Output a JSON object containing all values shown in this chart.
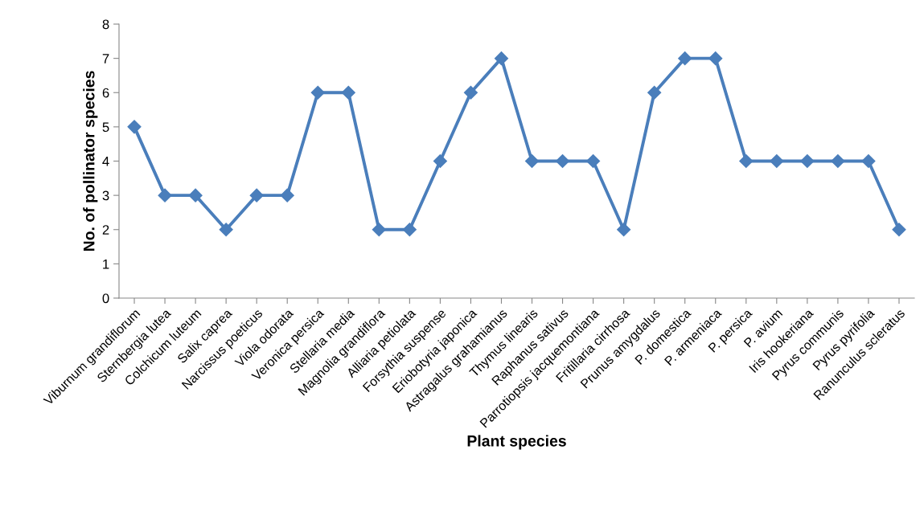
{
  "chart_data": {
    "type": "line",
    "xlabel": "Plant species",
    "ylabel": "No. of pollinator species",
    "categories": [
      "Viburnum grandiflorum",
      "Sternbergia lutea",
      "Colchicum luteum",
      "Salix caprea",
      "Narcissus poeticus",
      "Viola odorata",
      "Veronica persica",
      "Stellaria media",
      "Magnolia grandiflora",
      "Alliaria petiolata",
      "Forsythia suspense",
      "Eriobotyria japonica",
      "Astragalus grahamianus",
      "Thymus linearis",
      "Raphanus sativus",
      "Parrotiopsis jacquemontiana",
      "Fritillaria cirrhosa",
      "Prunus amygdalus",
      "P. domestica",
      "P. armeniaca",
      "P. persica",
      "P. avium",
      "Iris hookeriana",
      "Pyrus communis",
      "Pyrus pyrifolia",
      "Ranunculus scleratus"
    ],
    "series": [
      {
        "color": "#4a7ebb",
        "values": [
          5,
          3,
          3,
          2,
          3,
          3,
          6,
          6,
          2,
          2,
          4,
          6,
          7,
          4,
          4,
          4,
          2,
          6,
          7,
          7,
          4,
          4,
          4,
          4,
          4,
          2
        ]
      }
    ],
    "ylim": [
      0,
      8
    ],
    "yticks": [
      0,
      1,
      2,
      3,
      4,
      5,
      6,
      7,
      8
    ],
    "grid": false,
    "legend": false,
    "marker": "diamond",
    "line_style": "solid"
  }
}
